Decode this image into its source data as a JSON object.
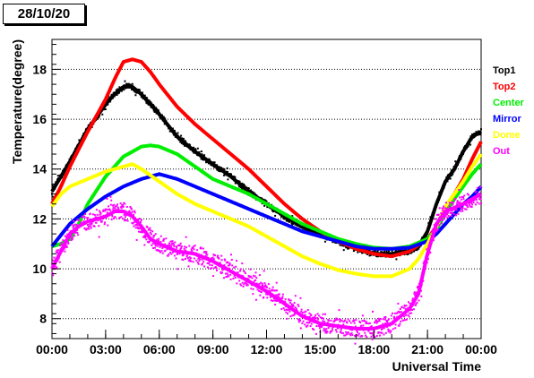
{
  "date_label": "28/10/20",
  "chart_data": {
    "type": "line",
    "xlabel": "Universal Time",
    "ylabel": "Temperature(degree)",
    "xlim": [
      0,
      24
    ],
    "ylim": [
      7.2,
      19.2
    ],
    "x_ticks": [
      0,
      3,
      6,
      9,
      12,
      15,
      18,
      21,
      24
    ],
    "x_tick_labels": [
      "00:00",
      "03:00",
      "06:00",
      "09:00",
      "12:00",
      "15:00",
      "18:00",
      "21:00",
      "00:00"
    ],
    "y_ticks": [
      8,
      10,
      12,
      14,
      16,
      18
    ],
    "y_tick_labels": [
      "8",
      "10",
      "12",
      "14",
      "16",
      "18"
    ],
    "grid": "horizontal dotted",
    "legend_position": "right",
    "series": [
      {
        "name": "Top1",
        "color": "#000000",
        "noise": 0.12,
        "x": [
          0,
          1,
          2,
          3,
          3.5,
          4,
          4.5,
          5,
          6,
          7,
          8,
          9,
          10,
          11,
          12,
          13,
          14,
          15,
          16,
          17,
          18,
          19,
          20,
          20.5,
          21,
          21.5,
          22,
          22.5,
          23,
          23.5,
          24
        ],
        "y": [
          13.1,
          14.3,
          15.6,
          16.6,
          17.0,
          17.3,
          17.3,
          17.0,
          16.2,
          15.3,
          14.7,
          14.2,
          13.7,
          13.1,
          12.6,
          12.1,
          11.7,
          11.4,
          11.1,
          10.8,
          10.6,
          10.6,
          10.7,
          10.9,
          11.5,
          12.6,
          13.5,
          14.0,
          14.7,
          15.3,
          15.5
        ]
      },
      {
        "name": "Top2",
        "color": "#ff0000",
        "noise": 0.03,
        "x": [
          0,
          0.5,
          1,
          2,
          3,
          3.5,
          4,
          4.5,
          5,
          5.5,
          6,
          7,
          8,
          9,
          10,
          11,
          12,
          13,
          14,
          15,
          16,
          17,
          18,
          19,
          20,
          21,
          21.5,
          22,
          23,
          23.5,
          24
        ],
        "y": [
          12.6,
          13.3,
          14.1,
          15.5,
          16.8,
          17.6,
          18.3,
          18.4,
          18.3,
          17.9,
          17.4,
          16.5,
          15.8,
          15.2,
          14.6,
          14.0,
          13.3,
          12.6,
          12.0,
          11.5,
          11.1,
          10.8,
          10.6,
          10.5,
          10.7,
          11.2,
          11.7,
          12.4,
          13.6,
          14.4,
          15.1
        ]
      },
      {
        "name": "Center",
        "color": "#00ee00",
        "noise": 0.03,
        "x": [
          0,
          0.5,
          1,
          1.5,
          2,
          3,
          4,
          5,
          5.5,
          6,
          7,
          8,
          9,
          10,
          11,
          12,
          13,
          14,
          15,
          16,
          17,
          18,
          19,
          20,
          21,
          21.5,
          22,
          22.5,
          23,
          23.5,
          24
        ],
        "y": [
          10.9,
          11.0,
          11.2,
          11.8,
          12.6,
          13.7,
          14.5,
          14.9,
          14.95,
          14.9,
          14.6,
          14.1,
          13.6,
          13.3,
          13.0,
          12.6,
          12.2,
          11.8,
          11.5,
          11.2,
          11.0,
          10.85,
          10.8,
          10.9,
          11.2,
          11.6,
          12.2,
          12.8,
          13.3,
          13.8,
          14.2
        ]
      },
      {
        "name": "Mirror",
        "color": "#0000ff",
        "noise": 0.03,
        "x": [
          0,
          1,
          2,
          3,
          4,
          5,
          6,
          7,
          8,
          9,
          10,
          11,
          12,
          13,
          14,
          15,
          16,
          17,
          18,
          19,
          20,
          21,
          21.5,
          22,
          22.5,
          23,
          23.5,
          24
        ],
        "y": [
          10.9,
          11.8,
          12.4,
          12.9,
          13.3,
          13.6,
          13.8,
          13.6,
          13.3,
          13.0,
          12.7,
          12.4,
          12.1,
          11.8,
          11.5,
          11.3,
          11.1,
          10.9,
          10.8,
          10.8,
          10.85,
          11.1,
          11.4,
          11.8,
          12.2,
          12.6,
          12.9,
          13.3
        ]
      },
      {
        "name": "Dome",
        "color": "#ffff00",
        "noise": 0.04,
        "x": [
          0,
          0.5,
          1,
          2,
          3,
          4,
          4.5,
          5,
          6,
          7,
          8,
          9,
          10,
          11,
          12,
          13,
          14,
          15,
          16,
          17,
          18,
          19,
          20,
          20.5,
          21,
          21.5,
          22,
          23,
          23.5,
          24
        ],
        "y": [
          12.5,
          13.0,
          13.3,
          13.6,
          13.9,
          14.1,
          14.2,
          14.0,
          13.5,
          13.0,
          12.6,
          12.3,
          12.0,
          11.7,
          11.3,
          10.9,
          10.5,
          10.2,
          9.95,
          9.8,
          9.7,
          9.7,
          10.0,
          10.4,
          11.0,
          11.7,
          12.5,
          13.5,
          14.1,
          14.6
        ]
      },
      {
        "name": "Out",
        "color": "#ff00ff",
        "noise": 0.35,
        "x": [
          0,
          0.5,
          1,
          1.5,
          2,
          2.5,
          3,
          3.5,
          4,
          4.5,
          5,
          5.5,
          6,
          7,
          8,
          9,
          10,
          11,
          12,
          13,
          14,
          15,
          16,
          17,
          18,
          19,
          20,
          20.5,
          21,
          21.5,
          22,
          23,
          24
        ],
        "y": [
          10.0,
          10.7,
          11.4,
          11.7,
          11.9,
          12.0,
          12.1,
          12.3,
          12.3,
          12.1,
          11.7,
          11.2,
          11.0,
          10.7,
          10.6,
          10.3,
          9.9,
          9.5,
          9.1,
          8.6,
          8.1,
          7.8,
          7.7,
          7.6,
          7.6,
          7.8,
          8.4,
          9.0,
          10.6,
          11.8,
          12.3,
          12.6,
          13.0
        ]
      }
    ]
  }
}
